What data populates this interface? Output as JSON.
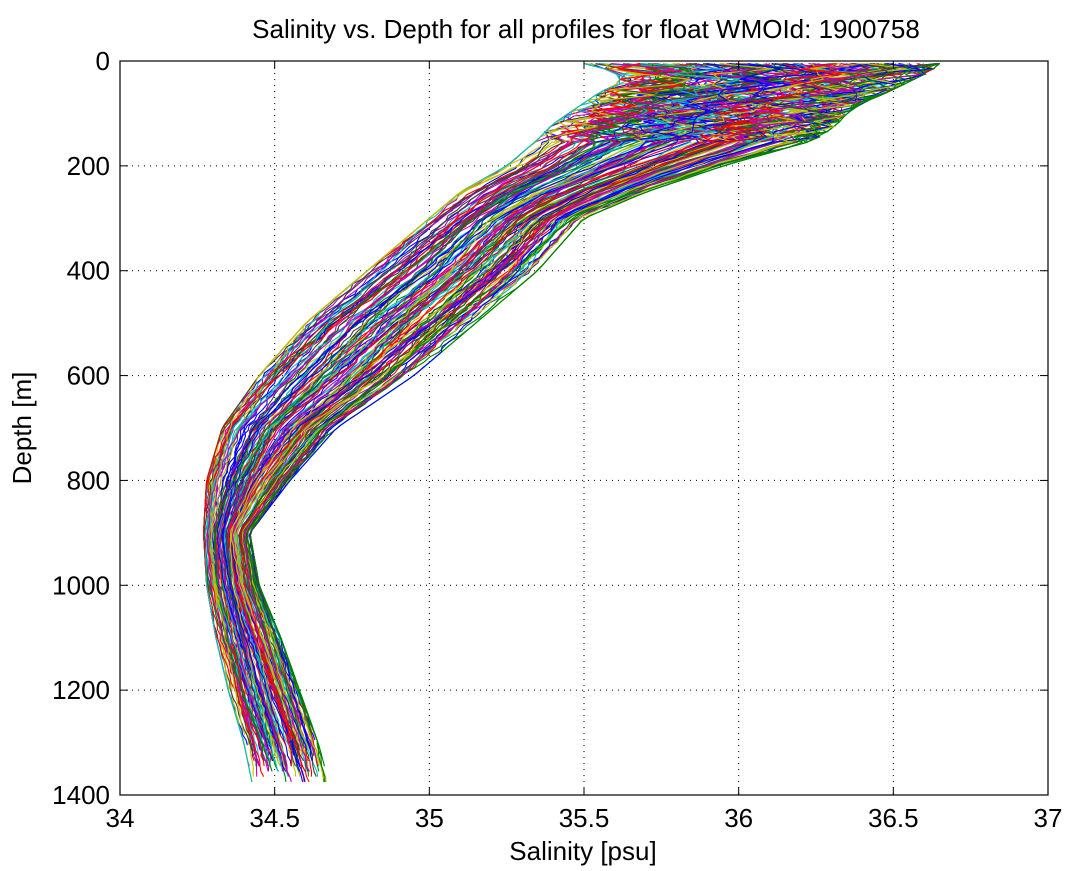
{
  "chart_data": {
    "type": "line",
    "title": "Salinity vs. Depth for all profiles for float WMOId: 1900758",
    "xlabel": "Salinity [psu]",
    "ylabel": "Depth [m]",
    "xlim": [
      34,
      37
    ],
    "ylim": [
      0,
      1400
    ],
    "y_reversed": true,
    "grid": true,
    "x_ticks": [
      "34",
      "34.5",
      "35",
      "35.5",
      "36",
      "36.5",
      "37"
    ],
    "y_ticks": [
      "0",
      "200",
      "400",
      "600",
      "800",
      "1000",
      "1200",
      "1400"
    ],
    "profile_count": 140,
    "envelope": {
      "depth": [
        5,
        20,
        40,
        60,
        80,
        100,
        120,
        150,
        200,
        250,
        300,
        400,
        500,
        600,
        700,
        800,
        900,
        1000,
        1100,
        1200,
        1300,
        1385
      ],
      "salinity_low": [
        35.5,
        35.6,
        35.62,
        35.55,
        35.5,
        35.45,
        35.4,
        35.35,
        35.25,
        35.1,
        35.0,
        34.8,
        34.6,
        34.45,
        34.33,
        34.28,
        34.27,
        34.28,
        34.31,
        34.35,
        34.4,
        34.43
      ],
      "salinity_high": [
        36.65,
        36.62,
        36.55,
        36.48,
        36.4,
        36.35,
        36.32,
        36.25,
        35.95,
        35.7,
        35.5,
        35.35,
        35.15,
        34.95,
        34.7,
        34.55,
        34.42,
        34.45,
        34.52,
        34.58,
        34.64,
        34.68
      ]
    },
    "series_colors": [
      "#0000ff",
      "#008000",
      "#ff0000",
      "#00bfbf",
      "#bf00bf",
      "#bfbf00",
      "#404040"
    ]
  }
}
